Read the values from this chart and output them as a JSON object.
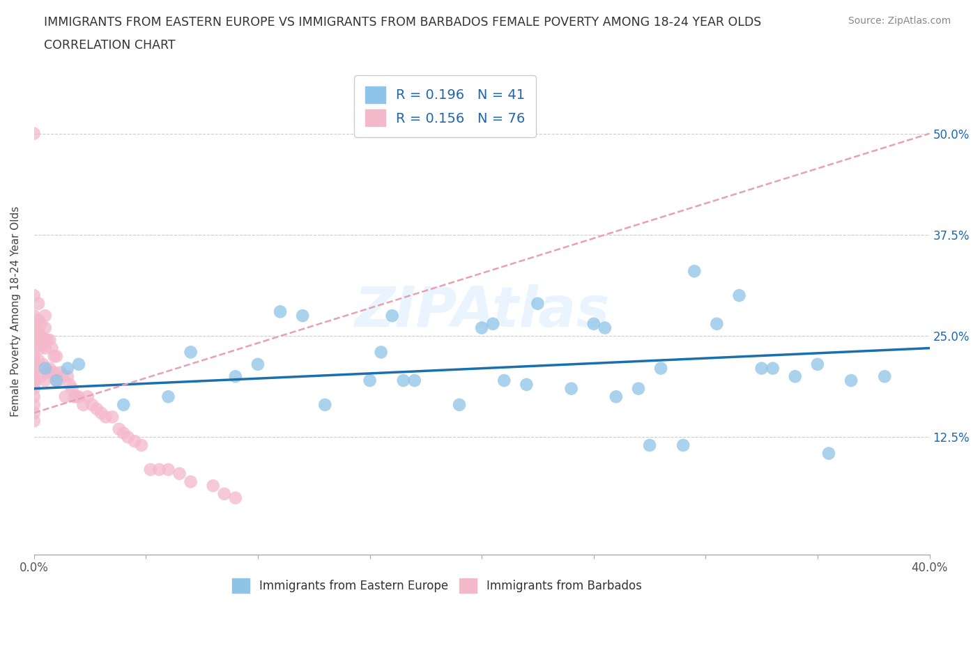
{
  "title_line1": "IMMIGRANTS FROM EASTERN EUROPE VS IMMIGRANTS FROM BARBADOS FEMALE POVERTY AMONG 18-24 YEAR OLDS",
  "title_line2": "CORRELATION CHART",
  "source": "Source: ZipAtlas.com",
  "ylabel": "Female Poverty Among 18-24 Year Olds",
  "xlim": [
    0.0,
    0.4
  ],
  "ylim": [
    -0.02,
    0.58
  ],
  "ytick_positions": [
    0.125,
    0.25,
    0.375,
    0.5
  ],
  "ytick_labels": [
    "12.5%",
    "25.0%",
    "37.5%",
    "50.0%"
  ],
  "legend_label1": "Immigrants from Eastern Europe",
  "legend_label2": "Immigrants from Barbados",
  "R1": 0.196,
  "N1": 41,
  "R2": 0.156,
  "N2": 76,
  "color_blue": "#8ec4e8",
  "color_pink": "#f4b8cb",
  "color_blue_line": "#1a6faf",
  "color_pink_line": "#e8a0b4",
  "color_blue_text": "#2166ac",
  "background_color": "#ffffff",
  "blue_scatter_x": [
    0.005,
    0.01,
    0.015,
    0.02,
    0.04,
    0.06,
    0.07,
    0.09,
    0.1,
    0.11,
    0.12,
    0.13,
    0.15,
    0.155,
    0.16,
    0.165,
    0.17,
    0.19,
    0.2,
    0.205,
    0.21,
    0.22,
    0.225,
    0.24,
    0.25,
    0.255,
    0.26,
    0.27,
    0.275,
    0.28,
    0.29,
    0.295,
    0.305,
    0.315,
    0.325,
    0.33,
    0.34,
    0.35,
    0.355,
    0.365,
    0.38
  ],
  "blue_scatter_y": [
    0.21,
    0.195,
    0.21,
    0.215,
    0.165,
    0.175,
    0.23,
    0.2,
    0.215,
    0.28,
    0.275,
    0.165,
    0.195,
    0.23,
    0.275,
    0.195,
    0.195,
    0.165,
    0.26,
    0.265,
    0.195,
    0.19,
    0.29,
    0.185,
    0.265,
    0.26,
    0.175,
    0.185,
    0.115,
    0.21,
    0.115,
    0.33,
    0.265,
    0.3,
    0.21,
    0.21,
    0.2,
    0.215,
    0.105,
    0.195,
    0.2
  ],
  "pink_scatter_x": [
    0.0,
    0.0,
    0.0,
    0.0,
    0.0,
    0.0,
    0.0,
    0.0,
    0.0,
    0.0,
    0.0,
    0.0,
    0.0,
    0.0,
    0.0,
    0.0,
    0.0,
    0.0,
    0.0,
    0.0,
    0.002,
    0.002,
    0.002,
    0.002,
    0.002,
    0.003,
    0.003,
    0.003,
    0.003,
    0.004,
    0.004,
    0.005,
    0.005,
    0.005,
    0.005,
    0.005,
    0.006,
    0.006,
    0.007,
    0.007,
    0.008,
    0.008,
    0.009,
    0.009,
    0.01,
    0.01,
    0.011,
    0.012,
    0.013,
    0.014,
    0.015,
    0.016,
    0.017,
    0.018,
    0.019,
    0.02,
    0.022,
    0.024,
    0.026,
    0.028,
    0.03,
    0.032,
    0.035,
    0.038,
    0.04,
    0.042,
    0.045,
    0.048,
    0.052,
    0.056,
    0.06,
    0.065,
    0.07,
    0.08,
    0.085,
    0.09
  ],
  "pink_scatter_y": [
    0.5,
    0.3,
    0.275,
    0.265,
    0.255,
    0.245,
    0.235,
    0.225,
    0.22,
    0.215,
    0.21,
    0.205,
    0.2,
    0.195,
    0.19,
    0.185,
    0.175,
    0.165,
    0.155,
    0.145,
    0.29,
    0.27,
    0.255,
    0.245,
    0.22,
    0.265,
    0.25,
    0.235,
    0.2,
    0.24,
    0.215,
    0.275,
    0.26,
    0.245,
    0.235,
    0.195,
    0.245,
    0.205,
    0.245,
    0.21,
    0.235,
    0.205,
    0.225,
    0.205,
    0.225,
    0.195,
    0.195,
    0.205,
    0.2,
    0.175,
    0.2,
    0.19,
    0.185,
    0.175,
    0.175,
    0.175,
    0.165,
    0.175,
    0.165,
    0.16,
    0.155,
    0.15,
    0.15,
    0.135,
    0.13,
    0.125,
    0.12,
    0.115,
    0.085,
    0.085,
    0.085,
    0.08,
    0.07,
    0.065,
    0.055,
    0.05
  ],
  "blue_trend_x0": 0.0,
  "blue_trend_y0": 0.185,
  "blue_trend_x1": 0.4,
  "blue_trend_y1": 0.235,
  "pink_trend_x0": 0.0,
  "pink_trend_y0": 0.155,
  "pink_trend_x1": 0.4,
  "pink_trend_y1": 0.5
}
